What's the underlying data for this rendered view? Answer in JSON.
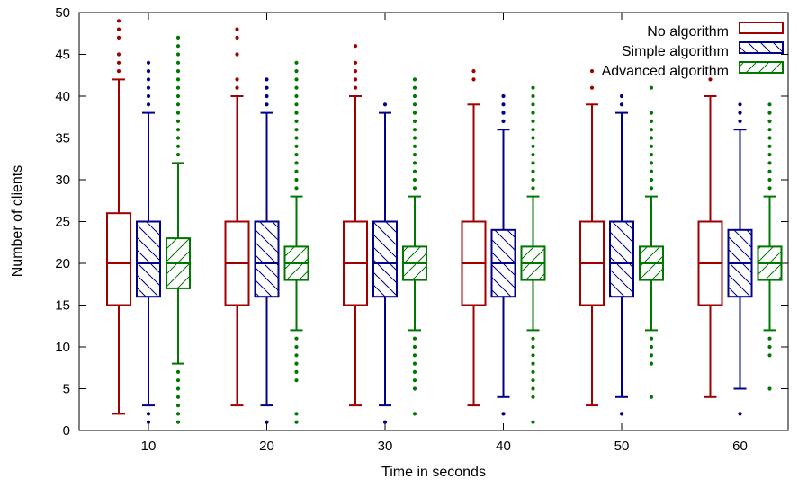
{
  "chart_data": {
    "type": "box",
    "title": "",
    "xlabel": "Time in seconds",
    "ylabel": "Number of clients",
    "ylim": [
      0,
      50
    ],
    "yticks": [
      0,
      5,
      10,
      15,
      20,
      25,
      30,
      35,
      40,
      45,
      50
    ],
    "categories": [
      "10",
      "20",
      "30",
      "40",
      "50",
      "60"
    ],
    "legend_position": "top-right",
    "grid": false,
    "series": [
      {
        "name": "No algorithm",
        "color": "#a00000",
        "pattern": "none",
        "boxes": [
          {
            "whisker_low": 2,
            "q1": 15,
            "median": 20,
            "q3": 26,
            "whisker_high": 42,
            "outliers": [
              43,
              44,
              45,
              47,
              48,
              49
            ]
          },
          {
            "whisker_low": 3,
            "q1": 15,
            "median": 20,
            "q3": 25,
            "whisker_high": 40,
            "outliers": [
              41,
              42,
              45,
              47,
              48
            ]
          },
          {
            "whisker_low": 3,
            "q1": 15,
            "median": 20,
            "q3": 25,
            "whisker_high": 40,
            "outliers": [
              41,
              42,
              43,
              44,
              46
            ]
          },
          {
            "whisker_low": 3,
            "q1": 15,
            "median": 20,
            "q3": 25,
            "whisker_high": 39,
            "outliers": [
              42,
              43
            ]
          },
          {
            "whisker_low": 3,
            "q1": 15,
            "median": 20,
            "q3": 25,
            "whisker_high": 39,
            "outliers": [
              41,
              43
            ]
          },
          {
            "whisker_low": 4,
            "q1": 15,
            "median": 20,
            "q3": 25,
            "whisker_high": 40,
            "outliers": [
              42
            ]
          }
        ]
      },
      {
        "name": "Simple algorithm",
        "color": "#00008b",
        "pattern": "hatch-backslash",
        "boxes": [
          {
            "whisker_low": 3,
            "q1": 16,
            "median": 20,
            "q3": 25,
            "whisker_high": 38,
            "outliers": [
              1,
              2,
              39,
              40,
              41,
              42,
              43,
              44
            ]
          },
          {
            "whisker_low": 3,
            "q1": 16,
            "median": 20,
            "q3": 25,
            "whisker_high": 38,
            "outliers": [
              1,
              39,
              40,
              41,
              42
            ]
          },
          {
            "whisker_low": 3,
            "q1": 16,
            "median": 20,
            "q3": 25,
            "whisker_high": 38,
            "outliers": [
              1,
              39
            ]
          },
          {
            "whisker_low": 4,
            "q1": 16,
            "median": 20,
            "q3": 24,
            "whisker_high": 36,
            "outliers": [
              2,
              37,
              38,
              39,
              40
            ]
          },
          {
            "whisker_low": 4,
            "q1": 16,
            "median": 20,
            "q3": 25,
            "whisker_high": 38,
            "outliers": [
              2,
              39,
              40
            ]
          },
          {
            "whisker_low": 5,
            "q1": 16,
            "median": 20,
            "q3": 24,
            "whisker_high": 36,
            "outliers": [
              2,
              37,
              38,
              39
            ]
          }
        ]
      },
      {
        "name": "Advanced algorithm",
        "color": "#007700",
        "pattern": "hatch-slash",
        "boxes": [
          {
            "whisker_low": 8,
            "q1": 17,
            "median": 20,
            "q3": 23,
            "whisker_high": 32,
            "outliers": [
              1,
              2,
              3,
              4,
              5,
              6,
              7,
              33,
              34,
              35,
              36,
              37,
              38,
              39,
              40,
              41,
              42,
              43,
              44,
              45,
              46,
              47
            ]
          },
          {
            "whisker_low": 12,
            "q1": 18,
            "median": 20,
            "q3": 22,
            "whisker_high": 28,
            "outliers": [
              1,
              2,
              6,
              7,
              8,
              9,
              10,
              11,
              29,
              30,
              31,
              32,
              33,
              34,
              35,
              36,
              37,
              38,
              39,
              40,
              41,
              42,
              43,
              44
            ]
          },
          {
            "whisker_low": 12,
            "q1": 18,
            "median": 20,
            "q3": 22,
            "whisker_high": 28,
            "outliers": [
              2,
              5,
              6,
              7,
              8,
              9,
              10,
              11,
              29,
              30,
              31,
              32,
              33,
              34,
              35,
              36,
              37,
              38,
              39,
              40,
              41,
              42
            ]
          },
          {
            "whisker_low": 12,
            "q1": 18,
            "median": 20,
            "q3": 22,
            "whisker_high": 28,
            "outliers": [
              1,
              4,
              5,
              6,
              7,
              8,
              9,
              10,
              11,
              29,
              30,
              31,
              32,
              33,
              34,
              35,
              36,
              37,
              38,
              39,
              40,
              41
            ]
          },
          {
            "whisker_low": 12,
            "q1": 18,
            "median": 20,
            "q3": 22,
            "whisker_high": 28,
            "outliers": [
              4,
              8,
              9,
              10,
              11,
              29,
              30,
              31,
              32,
              33,
              34,
              35,
              36,
              37,
              38,
              41
            ]
          },
          {
            "whisker_low": 12,
            "q1": 18,
            "median": 20,
            "q3": 22,
            "whisker_high": 28,
            "outliers": [
              5,
              9,
              10,
              11,
              29,
              30,
              31,
              32,
              33,
              34,
              35,
              36,
              37,
              38,
              39
            ]
          }
        ]
      }
    ]
  }
}
